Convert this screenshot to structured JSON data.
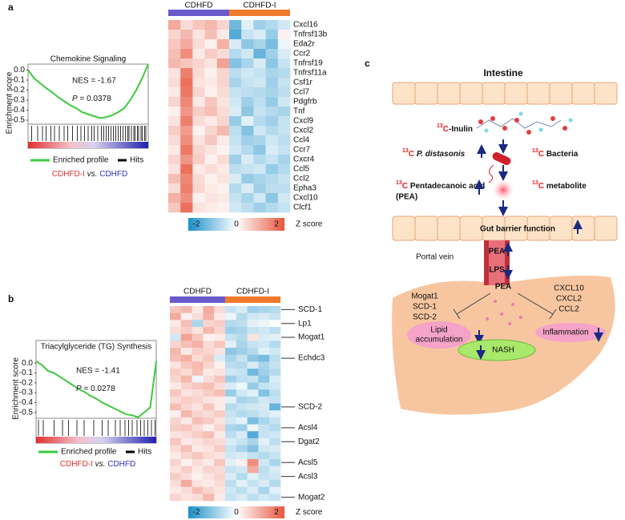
{
  "panel_labels": [
    "a",
    "b",
    "c"
  ],
  "chart_data": [
    {
      "type": "line",
      "title": "Chemokine Signaling",
      "ylabel": "Enrichment score",
      "xlim": [
        0,
        100
      ],
      "ylim": [
        -0.54,
        0.06
      ],
      "yticks": [
        {
          "value": 0,
          "label": "0.0"
        },
        -0.1,
        -0.2,
        -0.3,
        -0.4,
        -0.5
      ],
      "x": [
        0,
        5,
        10,
        15,
        20,
        25,
        30,
        35,
        40,
        45,
        50,
        55,
        60,
        65,
        70,
        75,
        80,
        85,
        90,
        95,
        100
      ],
      "series": [
        {
          "name": "Enriched profile",
          "color": "#3ec93e",
          "values": [
            0.0,
            -0.08,
            -0.13,
            -0.18,
            -0.22,
            -0.27,
            -0.31,
            -0.35,
            -0.38,
            -0.42,
            -0.44,
            -0.46,
            -0.48,
            -0.47,
            -0.45,
            -0.42,
            -0.38,
            -0.3,
            -0.2,
            -0.08,
            0.06
          ]
        }
      ],
      "hits": {
        "name": "Hits",
        "color": "#000000",
        "x": [
          3,
          8,
          12,
          15,
          19,
          22,
          26,
          30,
          33,
          37,
          41,
          44,
          47,
          50,
          53,
          55,
          58,
          61,
          63,
          65,
          67,
          69,
          71,
          73,
          75,
          77,
          79,
          81,
          83,
          84,
          86,
          88,
          89,
          91,
          92,
          94,
          95,
          97,
          98
        ]
      },
      "annotations": [
        "NES = -1.67"
      ],
      "p_symbol": "P",
      "p_text": "= 0.0378",
      "comparison": {
        "treated": "CDHFD-I",
        "treated_color": "#e03030",
        "sep": "vs.",
        "control": "CDHFD",
        "control_color": "#2f2fbf"
      }
    },
    {
      "type": "heatmap",
      "groups": [
        {
          "name": "CDHFD",
          "color": "#6a5acd",
          "columns": 5
        },
        {
          "name": "CDHFD-I",
          "color": "#f07a2c",
          "columns": 5
        }
      ],
      "categories": [
        "Cxcl16",
        "Tnfrsf13b",
        "Eda2r",
        "Ccr2",
        "Tnfrsf19",
        "Tnfrsf11a",
        "Csf1r",
        "Ccl7",
        "Pdgfrb",
        "Tnf",
        "Cxcl9",
        "Cxcl2",
        "Ccl4",
        "Ccr7",
        "Cxcr4",
        "Ccl5",
        "Ccl2",
        "Epha3",
        "Cxcl10",
        "Clcf1"
      ],
      "values": [
        [
          1.2,
          0.5,
          0.8,
          1.0,
          0.6,
          -1.5,
          -0.3,
          -1.0,
          -0.8,
          -0.5
        ],
        [
          0.6,
          1.0,
          0.4,
          0.9,
          0.3,
          -1.8,
          -0.6,
          -0.4,
          -1.1,
          0.2
        ],
        [
          0.8,
          1.2,
          0.5,
          0.2,
          1.1,
          -0.4,
          -1.2,
          -0.9,
          -1.4,
          -0.2
        ],
        [
          0.9,
          1.6,
          0.3,
          0.7,
          0.5,
          -0.8,
          -0.5,
          -1.6,
          -1.0,
          -0.4
        ],
        [
          1.0,
          0.8,
          0.6,
          0.4,
          1.3,
          -1.3,
          -0.9,
          -0.4,
          -1.2,
          -0.6
        ],
        [
          0.4,
          1.8,
          0.5,
          0.2,
          0.6,
          -0.7,
          -0.5,
          -0.6,
          -0.9,
          -0.8
        ],
        [
          0.5,
          2.0,
          0.4,
          0.3,
          0.6,
          -0.9,
          -0.6,
          -0.5,
          -1.0,
          -0.6
        ],
        [
          0.3,
          1.9,
          0.6,
          0.2,
          0.5,
          -0.6,
          -0.7,
          -0.8,
          -0.9,
          -0.7
        ],
        [
          0.6,
          1.7,
          0.3,
          0.8,
          0.4,
          -0.5,
          -1.0,
          -0.7,
          -1.1,
          -0.5
        ],
        [
          0.2,
          1.5,
          0.7,
          0.9,
          0.5,
          -0.4,
          -1.2,
          -0.6,
          -0.8,
          -0.9
        ],
        [
          0.4,
          1.8,
          0.5,
          0.3,
          0.6,
          -1.1,
          -0.3,
          -0.8,
          -1.0,
          -0.6
        ],
        [
          0.7,
          1.4,
          0.2,
          0.6,
          1.0,
          -0.7,
          -1.3,
          -0.5,
          -0.8,
          -0.6
        ],
        [
          0.5,
          1.6,
          0.4,
          0.8,
          0.3,
          -0.6,
          -1.0,
          -0.9,
          -0.5,
          -0.7
        ],
        [
          0.3,
          1.9,
          0.6,
          0.4,
          0.2,
          -0.5,
          -0.8,
          -1.2,
          -0.4,
          -0.6
        ],
        [
          0.6,
          1.5,
          0.7,
          0.2,
          0.5,
          -1.0,
          -0.4,
          -0.8,
          -0.6,
          -0.9
        ],
        [
          0.4,
          2.0,
          0.3,
          0.5,
          0.3,
          -0.7,
          -0.6,
          -0.5,
          -1.1,
          -0.8
        ],
        [
          0.9,
          1.7,
          0.5,
          0.2,
          0.4,
          -0.4,
          -1.1,
          -0.9,
          -0.8,
          -0.6
        ],
        [
          0.5,
          1.8,
          0.6,
          0.3,
          0.2,
          -0.8,
          -0.4,
          -1.0,
          -0.7,
          -0.7
        ],
        [
          1.1,
          1.6,
          0.2,
          0.4,
          0.3,
          -0.6,
          -0.9,
          -0.5,
          -1.2,
          -0.5
        ],
        [
          0.8,
          2.0,
          0.4,
          0.3,
          0.2,
          -0.5,
          -0.7,
          -1.0,
          -0.8,
          -0.6
        ]
      ],
      "zlim": [
        -2.4,
        2.4
      ],
      "zticks": [
        -2,
        0,
        2
      ],
      "colors": [
        "#1a8fc9",
        "#ffffff",
        "#e8553d"
      ],
      "colorbar_label": "Z score"
    },
    {
      "type": "line",
      "title": "Triacylglyceride (TG) Synthesis",
      "ylabel": "Enrichment score",
      "xlim": [
        0,
        100
      ],
      "ylim": [
        -0.56,
        0.23
      ],
      "yticks": [
        {
          "value": 0,
          "label": "0.0"
        },
        -0.1,
        -0.2,
        -0.3,
        -0.4,
        -0.5
      ],
      "x": [
        0,
        5,
        10,
        15,
        20,
        25,
        30,
        35,
        40,
        45,
        50,
        55,
        60,
        65,
        70,
        75,
        80,
        85,
        90,
        95,
        100
      ],
      "series": [
        {
          "name": "Enriched profile",
          "color": "#3ec93e",
          "values": [
            0.02,
            -0.02,
            -0.08,
            -0.1,
            -0.14,
            -0.18,
            -0.22,
            -0.26,
            -0.29,
            -0.33,
            -0.36,
            -0.4,
            -0.43,
            -0.46,
            -0.49,
            -0.52,
            -0.53,
            -0.55,
            -0.5,
            -0.45,
            0.02
          ]
        }
      ],
      "hits": {
        "name": "Hits",
        "color": "#000000",
        "x": [
          2,
          6,
          15,
          22,
          27,
          34,
          40,
          48,
          55,
          60,
          66,
          70,
          74,
          77,
          80,
          84,
          87,
          90,
          93,
          96,
          99
        ]
      },
      "annotations": [
        "NES = -1.41"
      ],
      "p_symbol": "P",
      "p_text": "= 0.0278",
      "comparison": {
        "treated": "CDHFD-I",
        "treated_color": "#e03030",
        "sep": "vs.",
        "control": "CDHFD",
        "control_color": "#2f2fbf"
      }
    },
    {
      "type": "heatmap",
      "groups": [
        {
          "name": "CDHFD",
          "color": "#6a5acd",
          "columns": 5
        },
        {
          "name": "CDHFD-I",
          "color": "#f07a2c",
          "columns": 5
        }
      ],
      "categories": [
        "SCD-1",
        null,
        "Lp1",
        null,
        "Mogat1",
        null,
        null,
        "Echdc3",
        null,
        null,
        null,
        null,
        null,
        null,
        "SCD-2",
        null,
        null,
        "Acsl4",
        null,
        "Dgat2",
        null,
        null,
        "Acsl5",
        null,
        "Acsl3",
        null,
        null,
        "Mogat2"
      ],
      "values": [
        [
          0.8,
          1.0,
          0.3,
          1.2,
          0.5,
          -0.6,
          -0.4,
          -1.0,
          -0.9,
          -0.8
        ],
        [
          1.2,
          0.2,
          0.5,
          1.1,
          0.3,
          -0.2,
          -0.8,
          -0.5,
          -0.4,
          -0.6
        ],
        [
          0.3,
          0.9,
          -0.9,
          0.6,
          0.7,
          -0.8,
          -0.7,
          -0.3,
          -0.2,
          0.0
        ],
        [
          0.5,
          0.7,
          0.4,
          1.0,
          0.6,
          -1.0,
          -0.9,
          -0.6,
          -0.5,
          -0.7
        ],
        [
          -0.5,
          1.3,
          0.8,
          0.2,
          0.3,
          -0.6,
          -0.8,
          0.4,
          -0.4,
          -0.3
        ],
        [
          0.6,
          0.9,
          1.1,
          0.5,
          0.8,
          -0.3,
          -0.9,
          -0.6,
          -0.5,
          -0.8
        ],
        [
          1.0,
          0.3,
          0.7,
          0.6,
          0.4,
          -1.2,
          -1.0,
          -0.8,
          -0.3,
          -0.5
        ],
        [
          0.9,
          1.1,
          0.5,
          0.8,
          -0.4,
          -0.9,
          -0.6,
          -1.2,
          -1.4,
          -0.7
        ],
        [
          0.4,
          0.8,
          1.0,
          0.6,
          0.2,
          -0.7,
          -0.8,
          -0.4,
          -0.9,
          -0.6
        ],
        [
          0.7,
          0.5,
          0.9,
          0.3,
          0.4,
          -0.5,
          -0.6,
          -1.5,
          -1.0,
          -0.8
        ],
        [
          0.6,
          1.0,
          -0.2,
          0.5,
          0.8,
          -1.0,
          -0.7,
          -0.6,
          -1.2,
          -0.4
        ],
        [
          0.3,
          0.6,
          0.8,
          0.9,
          0.5,
          -0.4,
          -0.2,
          -1.1,
          -0.6,
          -0.5
        ],
        [
          0.8,
          0.4,
          0.5,
          0.7,
          0.9,
          -1.1,
          -0.5,
          -0.3,
          -1.3,
          -0.7
        ],
        [
          0.5,
          0.7,
          0.6,
          0.4,
          0.3,
          -0.3,
          -0.9,
          -0.8,
          -0.5,
          -0.6
        ],
        [
          0.9,
          0.6,
          0.4,
          0.8,
          0.3,
          -0.8,
          -0.6,
          -0.5,
          -0.4,
          -1.6
        ],
        [
          0.2,
          1.0,
          0.6,
          0.5,
          0.7,
          -0.6,
          -0.8,
          -0.7,
          -0.5,
          -0.3
        ],
        [
          0.6,
          0.3,
          0.9,
          0.7,
          0.4,
          -0.5,
          -0.3,
          -1.4,
          -0.9,
          -0.6
        ],
        [
          0.7,
          0.8,
          0.5,
          0.2,
          0.6,
          -0.9,
          -1.0,
          -0.2,
          -0.6,
          -0.8
        ],
        [
          0.4,
          0.5,
          0.7,
          0.9,
          0.3,
          -0.7,
          -0.4,
          -1.8,
          -0.6,
          -0.5
        ],
        [
          0.8,
          0.3,
          0.4,
          0.6,
          0.5,
          -0.4,
          -0.6,
          -0.9,
          -0.3,
          -0.7
        ],
        [
          0.5,
          0.9,
          0.3,
          0.4,
          0.7,
          -0.6,
          -0.9,
          -1.3,
          -0.5,
          -0.4
        ],
        [
          0.3,
          0.6,
          0.8,
          0.5,
          0.4,
          -0.5,
          -0.4,
          -0.6,
          -0.8,
          -0.6
        ],
        [
          0.6,
          0.2,
          0.5,
          0.3,
          0.8,
          -0.3,
          0.2,
          1.6,
          -0.5,
          -0.9
        ],
        [
          0.4,
          0.7,
          0.3,
          0.6,
          0.5,
          -0.6,
          -0.5,
          1.2,
          -0.7,
          -0.4
        ],
        [
          0.7,
          0.5,
          0.2,
          0.4,
          0.6,
          -0.4,
          -0.8,
          -0.3,
          -0.6,
          -0.5
        ],
        [
          0.5,
          1.2,
          0.4,
          0.3,
          0.5,
          -0.7,
          -0.3,
          -0.6,
          -0.4,
          -0.8
        ],
        [
          0.3,
          0.5,
          0.9,
          0.6,
          0.4,
          -0.5,
          -0.7,
          -0.4,
          -0.9,
          -0.3
        ],
        [
          0.6,
          0.4,
          0.5,
          1.0,
          0.3,
          -0.6,
          -0.4,
          -0.7,
          -0.5,
          -0.6
        ]
      ],
      "zlim": [
        -2.4,
        2.4
      ],
      "zticks": [
        -2,
        0,
        2
      ],
      "colors": [
        "#1a8fc9",
        "#ffffff",
        "#e8553d"
      ],
      "colorbar_label": "Z score"
    }
  ],
  "diagram": {
    "title": "Intestine",
    "isotope": "13",
    "element": "C",
    "inulin": "-Inulin",
    "bacterium": "P. distasonis",
    "bacteria": "Bacteria",
    "pea_name": "Pentadecanoic acid",
    "pea_abbr": "(PEA)",
    "metabolite": "metabolite",
    "barrier": "Gut barrier function",
    "portal": "Portal vein",
    "pea": "PEA",
    "lps": "LPS",
    "lipid_genes": [
      "Mogat1",
      "SCD-1",
      "SCD-2"
    ],
    "inflammation_genes": [
      "CXCL10",
      "CXCL2",
      "CCL2"
    ],
    "lipid": [
      "Lipid",
      "accumulation"
    ],
    "inflammation": "Inflammation",
    "nash": "NASH"
  }
}
